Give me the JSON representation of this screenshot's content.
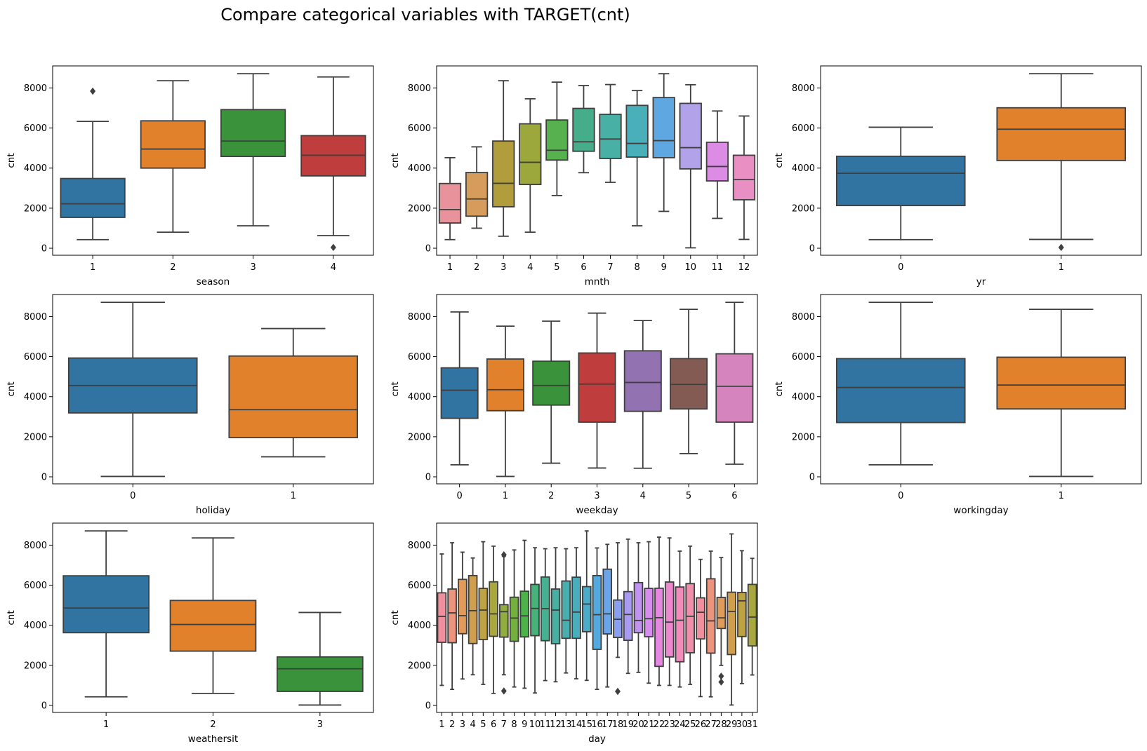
{
  "figure_title": "Compare categorical variables with TARGET(cnt)",
  "chart_data": [
    {
      "type": "boxplot",
      "xlabel": "season",
      "ylabel": "cnt",
      "ylim": [
        -350,
        9100
      ],
      "yticks": [
        0,
        2000,
        4000,
        6000,
        8000
      ],
      "grid": false,
      "categories": [
        "1",
        "2",
        "3",
        "4"
      ],
      "colors": [
        "#3274a1",
        "#e1812c",
        "#3a923a",
        "#c03d3e"
      ],
      "boxes": [
        {
          "whislo": 430,
          "q1": 1540,
          "med": 2220,
          "q3": 3480,
          "whishi": 6330,
          "fliers": [
            7840
          ]
        },
        {
          "whislo": 800,
          "q1": 4000,
          "med": 4950,
          "q3": 6360,
          "whishi": 8360,
          "fliers": []
        },
        {
          "whislo": 1120,
          "q1": 4580,
          "med": 5350,
          "q3": 6920,
          "whishi": 8710,
          "fliers": []
        },
        {
          "whislo": 630,
          "q1": 3610,
          "med": 4640,
          "q3": 5620,
          "whishi": 8550,
          "fliers": [
            40
          ]
        }
      ]
    },
    {
      "type": "boxplot",
      "xlabel": "mnth",
      "ylabel": "cnt",
      "ylim": [
        -350,
        9100
      ],
      "yticks": [
        0,
        2000,
        4000,
        6000,
        8000
      ],
      "grid": false,
      "categories": [
        "1",
        "2",
        "3",
        "4",
        "5",
        "6",
        "7",
        "8",
        "9",
        "10",
        "11",
        "12"
      ],
      "colors": [
        "#e8929b",
        "#d69c5b",
        "#b29d3c",
        "#9ca83c",
        "#58b14f",
        "#46ad8a",
        "#48b0a4",
        "#49afb9",
        "#5fa7e0",
        "#b1a2ea",
        "#dd8ce6",
        "#ea8fc3"
      ],
      "boxes": [
        {
          "whislo": 430,
          "q1": 1260,
          "med": 1930,
          "q3": 3230,
          "whishi": 4520,
          "fliers": []
        },
        {
          "whislo": 1000,
          "q1": 1600,
          "med": 2460,
          "q3": 3780,
          "whishi": 5060,
          "fliers": []
        },
        {
          "whislo": 600,
          "q1": 2070,
          "med": 3240,
          "q3": 5350,
          "whishi": 8360,
          "fliers": []
        },
        {
          "whislo": 800,
          "q1": 3180,
          "med": 4290,
          "q3": 6210,
          "whishi": 7460,
          "fliers": []
        },
        {
          "whislo": 2630,
          "q1": 4400,
          "med": 4890,
          "q3": 6400,
          "whishi": 8290,
          "fliers": []
        },
        {
          "whislo": 3770,
          "q1": 4840,
          "med": 5310,
          "q3": 6980,
          "whishi": 8120,
          "fliers": []
        },
        {
          "whislo": 3290,
          "q1": 4480,
          "med": 5450,
          "q3": 6680,
          "whishi": 8170,
          "fliers": []
        },
        {
          "whislo": 1120,
          "q1": 4550,
          "med": 5230,
          "q3": 7130,
          "whishi": 7870,
          "fliers": []
        },
        {
          "whislo": 1840,
          "q1": 4520,
          "med": 5370,
          "q3": 7520,
          "whishi": 8710,
          "fliers": []
        },
        {
          "whislo": 20,
          "q1": 3960,
          "med": 5020,
          "q3": 7230,
          "whishi": 8160,
          "fliers": []
        },
        {
          "whislo": 1490,
          "q1": 3360,
          "med": 4080,
          "q3": 5290,
          "whishi": 6850,
          "fliers": []
        },
        {
          "whislo": 440,
          "q1": 2420,
          "med": 3430,
          "q3": 4640,
          "whishi": 6600,
          "fliers": []
        }
      ]
    },
    {
      "type": "boxplot",
      "xlabel": "yr",
      "ylabel": "cnt",
      "ylim": [
        -350,
        9100
      ],
      "yticks": [
        0,
        2000,
        4000,
        6000,
        8000
      ],
      "grid": false,
      "categories": [
        "0",
        "1"
      ],
      "colors": [
        "#3274a1",
        "#e1812c"
      ],
      "boxes": [
        {
          "whislo": 430,
          "q1": 2130,
          "med": 3740,
          "q3": 4590,
          "whishi": 6040,
          "fliers": []
        },
        {
          "whislo": 440,
          "q1": 4380,
          "med": 5940,
          "q3": 7010,
          "whishi": 8710,
          "fliers": [
            40
          ]
        }
      ]
    },
    {
      "type": "boxplot",
      "xlabel": "holiday",
      "ylabel": "cnt",
      "ylim": [
        -350,
        9100
      ],
      "yticks": [
        0,
        2000,
        4000,
        6000,
        8000
      ],
      "grid": false,
      "categories": [
        "0",
        "1"
      ],
      "colors": [
        "#3274a1",
        "#e1812c"
      ],
      "boxes": [
        {
          "whislo": 20,
          "q1": 3190,
          "med": 4560,
          "q3": 5930,
          "whishi": 8710,
          "fliers": []
        },
        {
          "whislo": 1000,
          "q1": 1960,
          "med": 3350,
          "q3": 6030,
          "whishi": 7400,
          "fliers": []
        }
      ]
    },
    {
      "type": "boxplot",
      "xlabel": "weekday",
      "ylabel": "cnt",
      "ylim": [
        -350,
        9100
      ],
      "yticks": [
        0,
        2000,
        4000,
        6000,
        8000
      ],
      "grid": false,
      "categories": [
        "0",
        "1",
        "2",
        "3",
        "4",
        "5",
        "6"
      ],
      "colors": [
        "#3274a1",
        "#e1812c",
        "#3a923a",
        "#c03d3e",
        "#9372b2",
        "#845b53",
        "#d684bd"
      ],
      "boxes": [
        {
          "whislo": 600,
          "q1": 2920,
          "med": 4320,
          "q3": 5440,
          "whishi": 8230,
          "fliers": []
        },
        {
          "whislo": 20,
          "q1": 3300,
          "med": 4350,
          "q3": 5880,
          "whishi": 7520,
          "fliers": []
        },
        {
          "whislo": 680,
          "q1": 3580,
          "med": 4560,
          "q3": 5770,
          "whishi": 7770,
          "fliers": []
        },
        {
          "whislo": 440,
          "q1": 2730,
          "med": 4630,
          "q3": 6180,
          "whishi": 8170,
          "fliers": []
        },
        {
          "whislo": 430,
          "q1": 3270,
          "med": 4710,
          "q3": 6290,
          "whishi": 7800,
          "fliers": []
        },
        {
          "whislo": 1160,
          "q1": 3390,
          "med": 4610,
          "q3": 5900,
          "whishi": 8360,
          "fliers": []
        },
        {
          "whislo": 630,
          "q1": 2730,
          "med": 4520,
          "q3": 6140,
          "whishi": 8710,
          "fliers": []
        }
      ]
    },
    {
      "type": "boxplot",
      "xlabel": "workingday",
      "ylabel": "cnt",
      "ylim": [
        -350,
        9100
      ],
      "yticks": [
        0,
        2000,
        4000,
        6000,
        8000
      ],
      "grid": false,
      "categories": [
        "0",
        "1"
      ],
      "colors": [
        "#3274a1",
        "#e1812c"
      ],
      "boxes": [
        {
          "whislo": 600,
          "q1": 2710,
          "med": 4460,
          "q3": 5900,
          "whishi": 8710,
          "fliers": []
        },
        {
          "whislo": 20,
          "q1": 3390,
          "med": 4580,
          "q3": 5970,
          "whishi": 8360,
          "fliers": []
        }
      ]
    },
    {
      "type": "boxplot",
      "xlabel": "weathersit",
      "ylabel": "cnt",
      "ylim": [
        -350,
        9100
      ],
      "yticks": [
        0,
        2000,
        4000,
        6000,
        8000
      ],
      "grid": false,
      "categories": [
        "1",
        "2",
        "3"
      ],
      "colors": [
        "#3274a1",
        "#e1812c",
        "#3a923a"
      ],
      "boxes": [
        {
          "whislo": 430,
          "q1": 3630,
          "med": 4860,
          "q3": 6470,
          "whishi": 8710,
          "fliers": []
        },
        {
          "whislo": 600,
          "q1": 2710,
          "med": 4040,
          "q3": 5240,
          "whishi": 8360,
          "fliers": []
        },
        {
          "whislo": 20,
          "q1": 700,
          "med": 1830,
          "q3": 2420,
          "whishi": 4640,
          "fliers": []
        }
      ]
    },
    {
      "type": "boxplot",
      "xlabel": "day",
      "ylabel": "cnt",
      "ylim": [
        -350,
        9100
      ],
      "yticks": [
        0,
        2000,
        4000,
        6000,
        8000
      ],
      "grid": false,
      "categories": [
        "1",
        "2",
        "3",
        "4",
        "5",
        "6",
        "7",
        "8",
        "9",
        "10",
        "11",
        "12",
        "13",
        "14",
        "15",
        "16",
        "17",
        "18",
        "19",
        "20",
        "21",
        "22",
        "23",
        "24",
        "25",
        "26",
        "27",
        "28",
        "29",
        "30",
        "31"
      ],
      "colors": [
        "#f0909f",
        "#ec947d",
        "#e09b5a",
        "#cf9f4d",
        "#bda344",
        "#a8a83f",
        "#90ad3d",
        "#73b03d",
        "#4bb347",
        "#47b27a",
        "#47b091",
        "#49afa2",
        "#4aaeae",
        "#4aadbc",
        "#4bacca",
        "#54aadc",
        "#6aa5ea",
        "#8a9ff0",
        "#a99af2",
        "#c294f1",
        "#d68ded",
        "#e588e0",
        "#ed88cf",
        "#f18cbb",
        "#f08fab",
        "#f0909f",
        "#ec947d",
        "#e09b5a",
        "#cf9f4d",
        "#bda344",
        "#a8a83f"
      ],
      "boxes": [
        {
          "whislo": 1000,
          "q1": 3150,
          "med": 4440,
          "q3": 5620,
          "whishi": 7560,
          "fliers": []
        },
        {
          "whislo": 800,
          "q1": 3130,
          "med": 4620,
          "q3": 5810,
          "whishi": 8120,
          "fliers": []
        },
        {
          "whislo": 1320,
          "q1": 3580,
          "med": 4480,
          "q3": 6290,
          "whishi": 7650,
          "fliers": []
        },
        {
          "whislo": 1530,
          "q1": 3090,
          "med": 4730,
          "q3": 6480,
          "whishi": 7360,
          "fliers": []
        },
        {
          "whislo": 1050,
          "q1": 3290,
          "med": 4760,
          "q3": 5840,
          "whishi": 8170,
          "fliers": []
        },
        {
          "whislo": 600,
          "q1": 3450,
          "med": 4570,
          "q3": 6170,
          "whishi": 7950,
          "fliers": []
        },
        {
          "whislo": 1530,
          "q1": 3410,
          "med": 4680,
          "q3": 5030,
          "whishi": 7440,
          "fliers": [
            7520,
            720
          ]
        },
        {
          "whislo": 920,
          "q1": 3200,
          "med": 4360,
          "q3": 5400,
          "whishi": 7760,
          "fliers": []
        },
        {
          "whislo": 860,
          "q1": 3420,
          "med": 4470,
          "q3": 5700,
          "whishi": 8240,
          "fliers": []
        },
        {
          "whislo": 620,
          "q1": 3480,
          "med": 4840,
          "q3": 6040,
          "whishi": 7870,
          "fliers": []
        },
        {
          "whislo": 1240,
          "q1": 3230,
          "med": 4830,
          "q3": 6410,
          "whishi": 7820,
          "fliers": []
        },
        {
          "whislo": 1180,
          "q1": 3080,
          "med": 4760,
          "q3": 5810,
          "whishi": 7870,
          "fliers": []
        },
        {
          "whislo": 1620,
          "q1": 3350,
          "med": 4250,
          "q3": 6210,
          "whishi": 7820,
          "fliers": []
        },
        {
          "whislo": 1330,
          "q1": 3350,
          "med": 4660,
          "q3": 6400,
          "whishi": 7870,
          "fliers": []
        },
        {
          "whislo": 1250,
          "q1": 3680,
          "med": 5060,
          "q3": 5930,
          "whishi": 8710,
          "fliers": []
        },
        {
          "whislo": 800,
          "q1": 2800,
          "med": 4530,
          "q3": 6480,
          "whishi": 7860,
          "fliers": []
        },
        {
          "whislo": 920,
          "q1": 3570,
          "med": 4570,
          "q3": 6800,
          "whishi": 8040,
          "fliers": []
        },
        {
          "whislo": 2400,
          "q1": 3390,
          "med": 4300,
          "q3": 5260,
          "whishi": 8120,
          "fliers": [
            700
          ]
        },
        {
          "whislo": 1600,
          "q1": 3250,
          "med": 4540,
          "q3": 5680,
          "whishi": 8300,
          "fliers": []
        },
        {
          "whislo": 1650,
          "q1": 3630,
          "med": 4240,
          "q3": 6130,
          "whishi": 8120,
          "fliers": []
        },
        {
          "whislo": 1110,
          "q1": 3430,
          "med": 4330,
          "q3": 5840,
          "whishi": 8170,
          "fliers": []
        },
        {
          "whislo": 1000,
          "q1": 1950,
          "med": 4380,
          "q3": 5850,
          "whishi": 8400,
          "fliers": []
        },
        {
          "whislo": 1000,
          "q1": 2420,
          "med": 4160,
          "q3": 6160,
          "whishi": 8360,
          "fliers": []
        },
        {
          "whislo": 920,
          "q1": 2180,
          "med": 4250,
          "q3": 5910,
          "whishi": 7700,
          "fliers": []
        },
        {
          "whislo": 1050,
          "q1": 2630,
          "med": 4450,
          "q3": 6080,
          "whishi": 7950,
          "fliers": []
        },
        {
          "whislo": 440,
          "q1": 3320,
          "med": 4650,
          "q3": 5370,
          "whishi": 7290,
          "fliers": []
        },
        {
          "whislo": 430,
          "q1": 2610,
          "med": 4220,
          "q3": 6320,
          "whishi": 7700,
          "fliers": []
        },
        {
          "whislo": 2000,
          "q1": 3840,
          "med": 4370,
          "q3": 5390,
          "whishi": 7380,
          "fliers": [
            1460,
            1170
          ]
        },
        {
          "whislo": 20,
          "q1": 2540,
          "med": 4690,
          "q3": 5650,
          "whishi": 8560,
          "fliers": []
        },
        {
          "whislo": 1090,
          "q1": 3440,
          "med": 5220,
          "q3": 5640,
          "whishi": 7720,
          "fliers": []
        },
        {
          "whislo": 1520,
          "q1": 2970,
          "med": 4410,
          "q3": 6040,
          "whishi": 7340,
          "fliers": []
        }
      ]
    }
  ]
}
